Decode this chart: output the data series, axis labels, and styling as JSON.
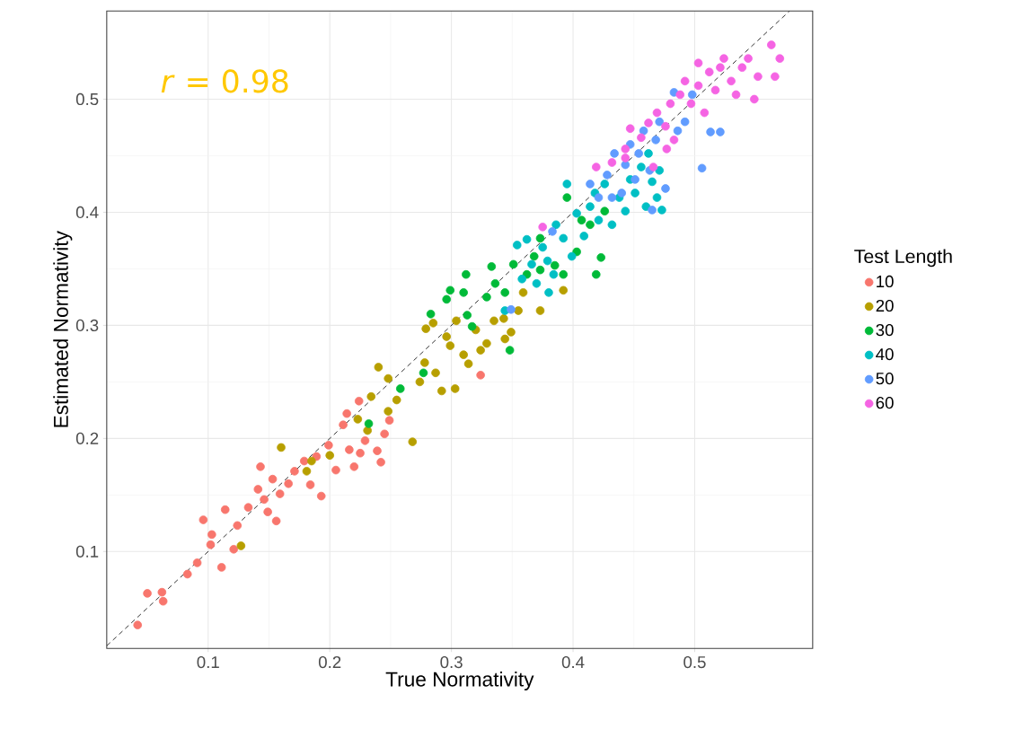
{
  "chart_data": {
    "type": "scatter",
    "xlabel": "True Normativity",
    "ylabel": "Estimated Normativity",
    "legend_title": "Test Length",
    "annotations": [
      "*r* = 0.98"
    ],
    "xlim": [
      0.0166,
      0.597
    ],
    "ylim": [
      0.0143,
      0.578
    ],
    "xticks": [
      0.1,
      0.2,
      0.3,
      0.4,
      0.5
    ],
    "yticks": [
      0.1,
      0.2,
      0.3,
      0.4,
      0.5
    ],
    "grid": true,
    "legend": "right",
    "marker": "circle",
    "series": [
      {
        "name": "10",
        "color": "#f8766d",
        "x": [
          0.042,
          0.05,
          0.062,
          0.063,
          0.083,
          0.091,
          0.096,
          0.103,
          0.102,
          0.111,
          0.124,
          0.121,
          0.133,
          0.141,
          0.146,
          0.149,
          0.153,
          0.156,
          0.159,
          0.166,
          0.171,
          0.179,
          0.184,
          0.189,
          0.193,
          0.199,
          0.205,
          0.211,
          0.216,
          0.22,
          0.225,
          0.229,
          0.242,
          0.239,
          0.245,
          0.214,
          0.224,
          0.249,
          0.324,
          0.143,
          0.114
        ],
        "values": [
          0.035,
          0.063,
          0.064,
          0.056,
          0.08,
          0.09,
          0.128,
          0.115,
          0.106,
          0.086,
          0.123,
          0.102,
          0.139,
          0.155,
          0.146,
          0.135,
          0.164,
          0.127,
          0.151,
          0.16,
          0.171,
          0.18,
          0.159,
          0.184,
          0.149,
          0.194,
          0.172,
          0.212,
          0.19,
          0.175,
          0.187,
          0.198,
          0.179,
          0.189,
          0.204,
          0.222,
          0.233,
          0.216,
          0.256,
          0.175,
          0.137
        ]
      },
      {
        "name": "20",
        "color": "#b79f00",
        "x": [
          0.127,
          0.16,
          0.185,
          0.181,
          0.2,
          0.231,
          0.234,
          0.24,
          0.248,
          0.255,
          0.268,
          0.274,
          0.278,
          0.279,
          0.285,
          0.287,
          0.292,
          0.296,
          0.299,
          0.303,
          0.304,
          0.31,
          0.314,
          0.32,
          0.324,
          0.329,
          0.335,
          0.343,
          0.349,
          0.355,
          0.359,
          0.373,
          0.392,
          0.344,
          0.248,
          0.223
        ],
        "values": [
          0.105,
          0.192,
          0.18,
          0.171,
          0.185,
          0.207,
          0.237,
          0.263,
          0.253,
          0.234,
          0.197,
          0.25,
          0.267,
          0.297,
          0.302,
          0.258,
          0.242,
          0.29,
          0.282,
          0.244,
          0.304,
          0.274,
          0.266,
          0.296,
          0.278,
          0.284,
          0.304,
          0.306,
          0.294,
          0.313,
          0.329,
          0.313,
          0.331,
          0.288,
          0.224,
          0.217
        ]
      },
      {
        "name": "30",
        "color": "#00ba38",
        "x": [
          0.232,
          0.258,
          0.277,
          0.296,
          0.299,
          0.31,
          0.313,
          0.317,
          0.329,
          0.333,
          0.336,
          0.344,
          0.348,
          0.351,
          0.362,
          0.368,
          0.373,
          0.373,
          0.385,
          0.392,
          0.395,
          0.403,
          0.407,
          0.414,
          0.419,
          0.423,
          0.426,
          0.312,
          0.283
        ],
        "values": [
          0.213,
          0.244,
          0.258,
          0.323,
          0.331,
          0.329,
          0.309,
          0.299,
          0.325,
          0.352,
          0.337,
          0.329,
          0.278,
          0.354,
          0.345,
          0.361,
          0.377,
          0.349,
          0.353,
          0.345,
          0.413,
          0.365,
          0.393,
          0.389,
          0.345,
          0.36,
          0.401,
          0.345,
          0.31
        ]
      },
      {
        "name": "40",
        "color": "#00bfc4",
        "x": [
          0.344,
          0.354,
          0.362,
          0.366,
          0.37,
          0.375,
          0.379,
          0.384,
          0.386,
          0.392,
          0.395,
          0.399,
          0.403,
          0.409,
          0.414,
          0.418,
          0.421,
          0.426,
          0.432,
          0.438,
          0.443,
          0.447,
          0.451,
          0.456,
          0.46,
          0.465,
          0.469,
          0.473,
          0.471,
          0.462,
          0.358,
          0.38
        ],
        "values": [
          0.313,
          0.371,
          0.376,
          0.354,
          0.337,
          0.369,
          0.357,
          0.345,
          0.389,
          0.377,
          0.425,
          0.361,
          0.399,
          0.379,
          0.405,
          0.417,
          0.393,
          0.425,
          0.389,
          0.413,
          0.401,
          0.429,
          0.417,
          0.44,
          0.405,
          0.427,
          0.413,
          0.402,
          0.437,
          0.452,
          0.341,
          0.329
        ]
      },
      {
        "name": "50",
        "color": "#619cff",
        "x": [
          0.349,
          0.383,
          0.414,
          0.421,
          0.428,
          0.434,
          0.44,
          0.443,
          0.447,
          0.451,
          0.454,
          0.458,
          0.463,
          0.468,
          0.471,
          0.483,
          0.486,
          0.492,
          0.506,
          0.513,
          0.521,
          0.498,
          0.432,
          0.476,
          0.465
        ],
        "values": [
          0.314,
          0.383,
          0.425,
          0.413,
          0.433,
          0.452,
          0.417,
          0.442,
          0.46,
          0.429,
          0.452,
          0.472,
          0.437,
          0.464,
          0.48,
          0.506,
          0.472,
          0.48,
          0.439,
          0.471,
          0.471,
          0.504,
          0.413,
          0.421,
          0.402
        ]
      },
      {
        "name": "60",
        "color": "#f564e3",
        "x": [
          0.375,
          0.419,
          0.432,
          0.443,
          0.447,
          0.443,
          0.456,
          0.462,
          0.469,
          0.476,
          0.48,
          0.488,
          0.492,
          0.497,
          0.503,
          0.508,
          0.512,
          0.517,
          0.521,
          0.524,
          0.53,
          0.534,
          0.539,
          0.544,
          0.549,
          0.552,
          0.563,
          0.566,
          0.57,
          0.503,
          0.477,
          0.466,
          0.483
        ],
        "values": [
          0.387,
          0.44,
          0.444,
          0.448,
          0.474,
          0.456,
          0.466,
          0.479,
          0.488,
          0.476,
          0.496,
          0.504,
          0.516,
          0.496,
          0.512,
          0.488,
          0.524,
          0.508,
          0.528,
          0.536,
          0.516,
          0.504,
          0.528,
          0.536,
          0.5,
          0.52,
          0.548,
          0.52,
          0.536,
          0.532,
          0.456,
          0.44,
          0.464
        ]
      },
      {
        "type": "line",
        "color": "#000000",
        "line_style": "dashed",
        "marker": "none",
        "x": [
          0.0166,
          0.578
        ],
        "values": [
          0.0166,
          0.578
        ]
      }
    ]
  }
}
